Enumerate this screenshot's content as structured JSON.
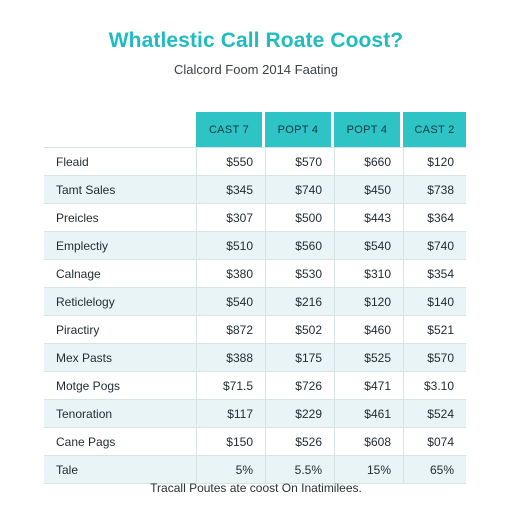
{
  "title": "Whatlestic Call Roate Coost?",
  "subtitle": "Clalcord Foom 2014 Faating",
  "table": {
    "headers": [
      "CAST 7",
      "POPT 4",
      "POPT 4",
      "CAST 2"
    ],
    "rows": [
      {
        "label": "Fleaid",
        "values": [
          "$550",
          "$570",
          "$660",
          "$120"
        ]
      },
      {
        "label": "Tamt Sales",
        "values": [
          "$345",
          "$740",
          "$450",
          "$738"
        ]
      },
      {
        "label": "Preicles",
        "values": [
          "$307",
          "$500",
          "$443",
          "$364"
        ]
      },
      {
        "label": "Emplectiy",
        "values": [
          "$510",
          "$560",
          "$540",
          "$740"
        ]
      },
      {
        "label": "Calnage",
        "values": [
          "$380",
          "$530",
          "$310",
          "$354"
        ]
      },
      {
        "label": "Reticlelogy",
        "values": [
          "$540",
          "$216",
          "$120",
          "$140"
        ]
      },
      {
        "label": "Piractiry",
        "values": [
          "$872",
          "$502",
          "$460",
          "$521"
        ]
      },
      {
        "label": "Mex Pasts",
        "values": [
          "$388",
          "$175",
          "$525",
          "$570"
        ]
      },
      {
        "label": "Motge Pogs",
        "values": [
          "$71.5",
          "$726",
          "$471",
          "$3.10"
        ]
      },
      {
        "label": "Tenoration",
        "values": [
          "$117",
          "$229",
          "$461",
          "$524"
        ]
      },
      {
        "label": "Cane Pags",
        "values": [
          "$150",
          "$526",
          "$608",
          "$074"
        ]
      },
      {
        "label": "Tale",
        "values": [
          "5%",
          "5.5%",
          "15%",
          "65%"
        ]
      }
    ]
  },
  "footer": "Tracall Poutes ate coost On Inatimilees."
}
